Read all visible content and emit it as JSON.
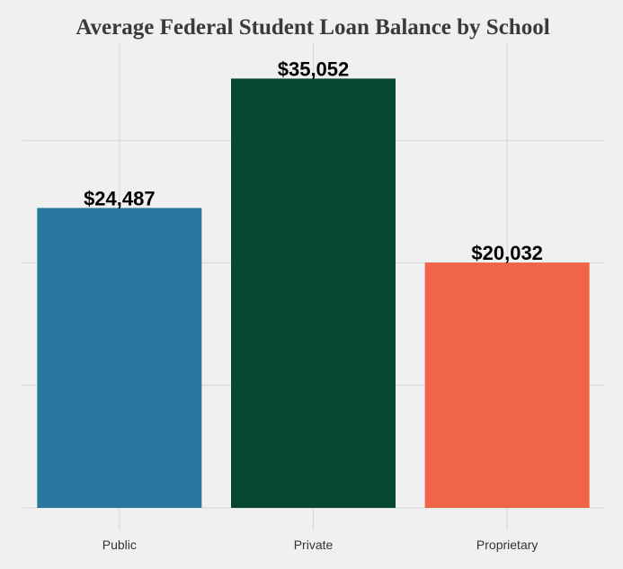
{
  "chart_data": {
    "type": "bar",
    "title": "Average Federal Student Loan Balance by School",
    "xlabel": "",
    "ylabel": "",
    "categories": [
      "Public",
      "Private",
      "Proprietary"
    ],
    "values": [
      24487,
      35052,
      20032
    ],
    "value_labels": [
      "$24,487",
      "$35,052",
      "$20,032"
    ],
    "colors": [
      "#29779e",
      "#064733",
      "#f0654a"
    ],
    "ylim": [
      0,
      40000
    ],
    "grid": true,
    "legend": "none"
  }
}
